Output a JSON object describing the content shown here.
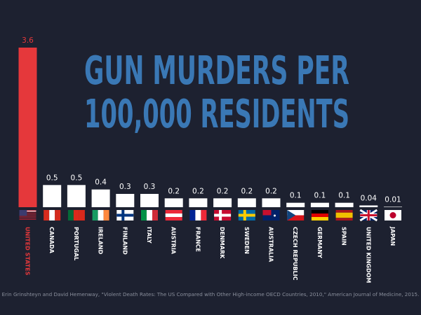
{
  "chart_data": {
    "type": "bar",
    "title": [
      "GUN MURDERS PER",
      "100,000 RESIDENTS"
    ],
    "categories": [
      "UNITED STATES",
      "CANADA",
      "PORTUGAL",
      "IRELAND",
      "FINLAND",
      "ITALY",
      "AUSTRIA",
      "FRANCE",
      "DENMARK",
      "SWEDEN",
      "AUSTRALIA",
      "CZECH REPUBLIC",
      "GERMANY",
      "SPAIN",
      "UNITED KINGDOM",
      "JAPAN"
    ],
    "values": [
      3.6,
      0.5,
      0.5,
      0.4,
      0.3,
      0.3,
      0.2,
      0.2,
      0.2,
      0.2,
      0.2,
      0.1,
      0.1,
      0.1,
      0.04,
      0.01
    ],
    "colors": [
      "#e5383b",
      "#ffffff",
      "#ffffff",
      "#ffffff",
      "#ffffff",
      "#ffffff",
      "#ffffff",
      "#ffffff",
      "#ffffff",
      "#ffffff",
      "#ffffff",
      "#ffffff",
      "#ffffff",
      "#ffffff",
      "#ffffff",
      "#ffffff"
    ],
    "source": "Erin Grinshteyn and David Hemenway, \"Violent Death Rates: The US Compared with Other High-income OECD Countries, 2010,\" American Journal of Medicine, 2015."
  }
}
